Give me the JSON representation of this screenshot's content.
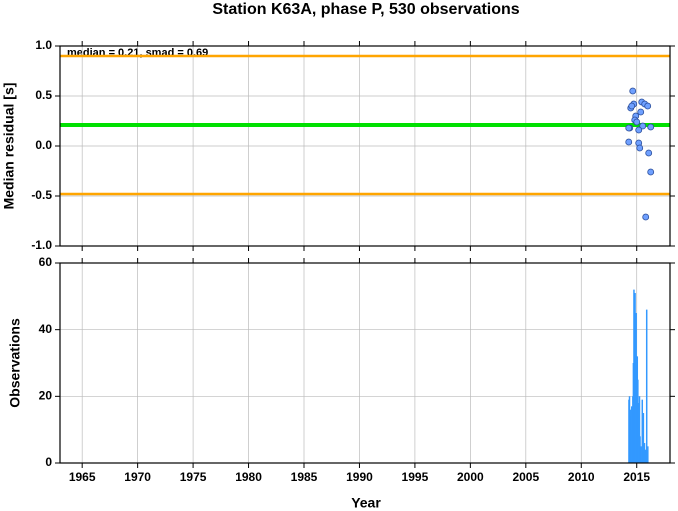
{
  "chart_data": [
    {
      "type": "scatter",
      "title": "Station K63A, phase P, 530 observations",
      "ylabel": "Median residual [s]",
      "annotation": "median = 0.21, smad = 0.69",
      "xlim": [
        1963,
        2018
      ],
      "xticks": [
        1965,
        1970,
        1975,
        1980,
        1985,
        1990,
        1995,
        2000,
        2005,
        2010,
        2015
      ],
      "ylim": [
        -1.0,
        1.0
      ],
      "yticks": [
        {
          "value": -1.0,
          "label": "-1.0"
        },
        -0.5,
        {
          "value": 0.0,
          "label": "0.0"
        },
        0.5,
        {
          "value": 1.0,
          "label": "1.0"
        }
      ],
      "grid": true,
      "hlines": [
        {
          "value": 0.9,
          "color": "#ffa500"
        },
        {
          "value": 0.21,
          "color": "#00e000"
        },
        {
          "value": -0.48,
          "color": "#ffa500"
        }
      ],
      "series": [
        {
          "color": "#6fa0ff",
          "x": [
            2014.64,
            2014.46,
            2014.73,
            2014.55,
            2014.91,
            2014.82,
            2015.0,
            2014.37,
            2014.28,
            2014.28,
            2015.45,
            2015.72,
            2015.99,
            2015.36,
            2015.54,
            2016.26,
            2015.18,
            2015.27,
            2016.08,
            2016.26,
            2015.81,
            2015.18
          ],
          "values": [
            0.55,
            0.38,
            0.42,
            0.4,
            0.3,
            0.26,
            0.24,
            0.18,
            0.18,
            0.04,
            0.44,
            0.42,
            0.4,
            0.34,
            0.2,
            0.19,
            0.03,
            -0.02,
            -0.07,
            -0.26,
            -0.71,
            0.16
          ]
        }
      ]
    },
    {
      "type": "bar",
      "ylabel": "Observations",
      "xlabel": "Year",
      "xlim": [
        1963,
        2018
      ],
      "xticks": [
        1965,
        1970,
        1975,
        1980,
        1985,
        1990,
        1995,
        2000,
        2005,
        2010,
        2015
      ],
      "ylim": [
        0,
        60
      ],
      "yticks": [
        0,
        20,
        40,
        60
      ],
      "grid": true,
      "color": "#3399ff",
      "x": [
        2014.3,
        2014.35,
        2014.4,
        2014.45,
        2014.5,
        2014.55,
        2014.6,
        2014.65,
        2014.7,
        2014.75,
        2014.8,
        2014.85,
        2014.9,
        2014.95,
        2015.0,
        2015.05,
        2015.1,
        2015.15,
        2015.2,
        2015.25,
        2015.3,
        2015.4,
        2015.5,
        2015.6,
        2015.7,
        2015.8,
        2015.9,
        2016.0
      ],
      "values": [
        19,
        20,
        8,
        16,
        14,
        17,
        10,
        20,
        30,
        52,
        38,
        51,
        35,
        45,
        28,
        32,
        25,
        18,
        12,
        20,
        8,
        5,
        19,
        15,
        6,
        4,
        46,
        5
      ]
    }
  ]
}
